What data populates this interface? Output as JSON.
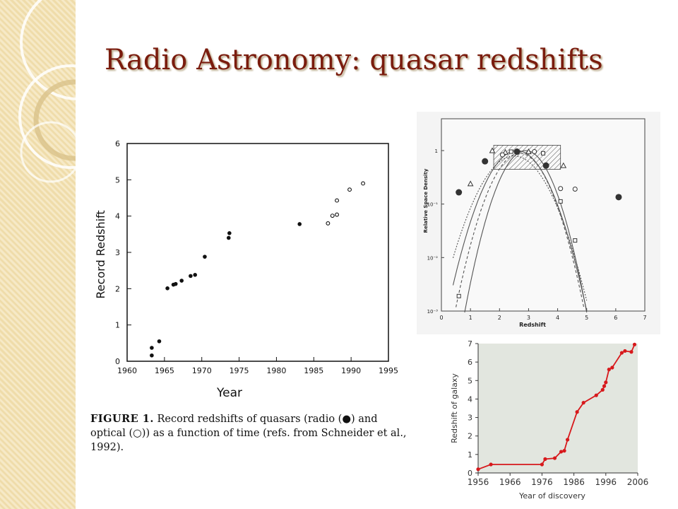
{
  "slide": {
    "title": "Radio Astronomy: quasar redshifts",
    "caption_fig": "FIGURE 1.",
    "caption_text": "Record redshifts of quasars (radio (●) and optical (○)) as a function of time (refs. from Schneider et al., 1992)."
  },
  "chart_data": [
    {
      "type": "scatter",
      "xlabel": "Year",
      "ylabel": "Record Redshift",
      "xlim": [
        1960,
        1995
      ],
      "ylim": [
        0,
        6
      ],
      "xticks": [
        "1960",
        "1965",
        "1970",
        "1975",
        "1980",
        "1985",
        "1990",
        "1995"
      ],
      "yticks": [
        "0",
        "1",
        "2",
        "3",
        "4",
        "5",
        "6"
      ],
      "series": [
        {
          "marker": "filled",
          "points": [
            [
              1963.3,
              0.16
            ],
            [
              1963.3,
              0.37
            ],
            [
              1964.3,
              0.55
            ],
            [
              1965.4,
              2.01
            ],
            [
              1966.2,
              2.11
            ],
            [
              1966.5,
              2.13
            ],
            [
              1967.3,
              2.22
            ],
            [
              1968.5,
              2.35
            ],
            [
              1969.1,
              2.38
            ],
            [
              1970.4,
              2.88
            ],
            [
              1973.6,
              3.4
            ],
            [
              1973.7,
              3.53
            ],
            [
              1983.1,
              3.78
            ]
          ]
        },
        {
          "marker": "open",
          "points": [
            [
              1986.9,
              3.8
            ],
            [
              1987.5,
              4.01
            ],
            [
              1988.1,
              4.04
            ],
            [
              1988.1,
              4.43
            ],
            [
              1989.8,
              4.73
            ],
            [
              1991.6,
              4.9
            ]
          ]
        }
      ]
    },
    {
      "type": "scatter",
      "xlabel": "Redshift",
      "ylabel": "Relative Space Density",
      "xlim": [
        0,
        7
      ],
      "yscale": "log",
      "xticks": [
        "0",
        "1",
        "2",
        "3",
        "4",
        "5",
        "6",
        "7"
      ],
      "yticks": [
        "1",
        "10⁻¹",
        "10⁻²",
        "10⁻³"
      ],
      "markers": [
        {
          "shape": "circle-filled",
          "points": [
            [
              0.6,
              -0.78
            ],
            [
              1.5,
              -0.2
            ],
            [
              2.6,
              -0.02
            ],
            [
              3.6,
              -0.28
            ],
            [
              6.1,
              -0.87
            ]
          ]
        },
        {
          "shape": "triangle",
          "points": [
            [
              1.0,
              -0.62
            ],
            [
              1.75,
              0.0
            ],
            [
              2.2,
              -0.03
            ],
            [
              3.0,
              -0.02
            ],
            [
              4.2,
              -0.28
            ]
          ]
        },
        {
          "shape": "circle-open",
          "points": [
            [
              2.1,
              -0.08
            ],
            [
              3.2,
              -0.02
            ],
            [
              4.1,
              -0.71
            ],
            [
              4.6,
              -0.72
            ]
          ]
        },
        {
          "shape": "square",
          "points": [
            [
              0.6,
              -2.72
            ],
            [
              2.4,
              -0.02
            ],
            [
              3.5,
              -0.05
            ],
            [
              4.1,
              -0.95
            ],
            [
              4.6,
              -1.68
            ]
          ]
        }
      ]
    },
    {
      "type": "line",
      "xlabel": "Year of discovery",
      "ylabel": "Redshift of galaxy",
      "xlim": [
        1956,
        2006
      ],
      "ylim": [
        0,
        7
      ],
      "xticks": [
        "1956",
        "1966",
        "1976",
        "1986",
        "1996",
        "2006"
      ],
      "yticks": [
        "0",
        "1",
        "2",
        "3",
        "4",
        "5",
        "6",
        "7"
      ],
      "line_color": "#d7191c",
      "bg_color": "#e2e6df",
      "x": [
        1956,
        1960,
        1976,
        1977,
        1980,
        1982,
        1983,
        1984,
        1987,
        1989,
        1993,
        1995,
        1995.5,
        1996,
        1997,
        1998,
        2001,
        2002,
        2004,
        2005
      ],
      "y": [
        0.2,
        0.46,
        0.46,
        0.75,
        0.8,
        1.15,
        1.2,
        1.8,
        3.3,
        3.8,
        4.2,
        4.5,
        4.7,
        4.9,
        5.6,
        5.7,
        6.5,
        6.6,
        6.55,
        6.95
      ]
    }
  ]
}
